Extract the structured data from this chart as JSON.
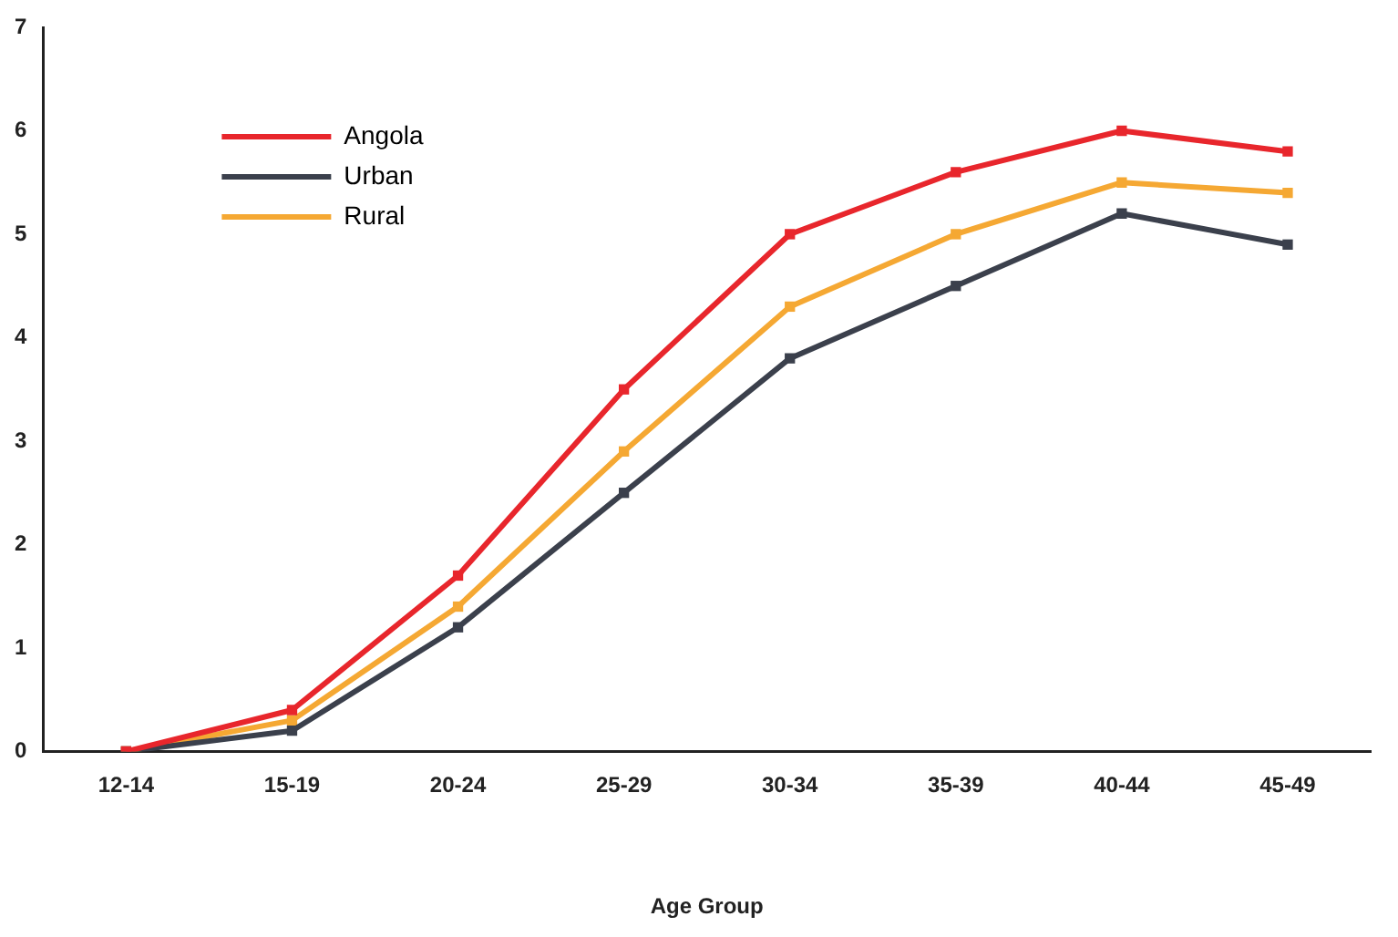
{
  "chart_data": {
    "type": "line",
    "xlabel": "Age Group",
    "categories": [
      "12-14",
      "15-19",
      "20-24",
      "25-29",
      "30-34",
      "35-39",
      "40-44",
      "45-49"
    ],
    "series": [
      {
        "name": "Angola",
        "color": "#e8262c",
        "values": [
          0,
          0.4,
          1.7,
          3.5,
          5.0,
          5.6,
          6.0,
          5.8
        ]
      },
      {
        "name": "Urban",
        "color": "#3b404c",
        "values": [
          0,
          0.2,
          1.2,
          2.5,
          3.8,
          4.5,
          5.2,
          4.9
        ]
      },
      {
        "name": "Rural",
        "color": "#f5a833",
        "values": [
          0,
          0.3,
          1.4,
          2.9,
          4.3,
          5.0,
          5.5,
          5.4
        ]
      }
    ],
    "ylim": [
      0,
      7
    ],
    "yticks": [
      0,
      1,
      2,
      3,
      4,
      5,
      6,
      7
    ],
    "grid": false,
    "legend": "top left",
    "marker": "square",
    "line_style": "solid"
  }
}
